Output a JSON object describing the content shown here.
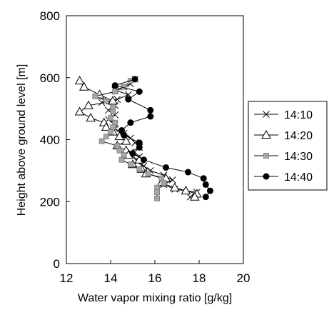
{
  "chart_data": {
    "type": "scatter",
    "xlabel": "Water vapor mixing ratio [g/kg]",
    "ylabel": "Height above ground level [m]",
    "xlim": [
      12,
      20
    ],
    "ylim": [
      0,
      800
    ],
    "xticks": [
      "12",
      "14",
      "16",
      "18",
      "20"
    ],
    "yticks": [
      "0",
      "200",
      "400",
      "600",
      "800"
    ],
    "legend_position": "right",
    "grid": false,
    "series": [
      {
        "name": "14:10",
        "marker": "x",
        "points": [
          [
            15.1,
            595
          ],
          [
            14.9,
            580
          ],
          [
            14.6,
            570
          ],
          [
            14.2,
            560
          ],
          [
            14.8,
            545
          ],
          [
            14.3,
            530
          ],
          [
            13.6,
            520
          ],
          [
            14.2,
            510
          ],
          [
            13.9,
            495
          ],
          [
            14.2,
            480
          ],
          [
            13.9,
            465
          ],
          [
            14.2,
            450
          ],
          [
            14.2,
            435
          ],
          [
            14.6,
            420
          ],
          [
            14.9,
            405
          ],
          [
            15.1,
            390
          ],
          [
            15.3,
            375
          ],
          [
            14.9,
            360
          ],
          [
            15.3,
            345
          ],
          [
            15.2,
            330
          ],
          [
            15.5,
            315
          ],
          [
            15.8,
            300
          ],
          [
            16.4,
            285
          ],
          [
            16.8,
            270
          ],
          [
            16.4,
            255
          ],
          [
            16.9,
            240
          ],
          [
            17.9,
            230
          ],
          [
            17.6,
            215
          ]
        ]
      },
      {
        "name": "14:20",
        "marker": "triangle",
        "points": [
          [
            12.6,
            590
          ],
          [
            12.8,
            570
          ],
          [
            13.5,
            545
          ],
          [
            14.1,
            525
          ],
          [
            13.0,
            510
          ],
          [
            12.6,
            490
          ],
          [
            13.1,
            470
          ],
          [
            13.7,
            455
          ],
          [
            13.8,
            440
          ],
          [
            14.1,
            425
          ],
          [
            14.4,
            410
          ],
          [
            14.7,
            395
          ],
          [
            14.3,
            380
          ],
          [
            14.7,
            365
          ],
          [
            14.8,
            350
          ],
          [
            15.3,
            335
          ],
          [
            15.0,
            320
          ],
          [
            15.4,
            305
          ],
          [
            15.6,
            290
          ],
          [
            16.5,
            275
          ],
          [
            16.3,
            260
          ],
          [
            16.9,
            245
          ],
          [
            17.4,
            235
          ],
          [
            17.9,
            225
          ],
          [
            17.8,
            215
          ]
        ]
      },
      {
        "name": "14:30",
        "marker": "square",
        "points": [
          [
            14.9,
            590
          ],
          [
            14.6,
            570
          ],
          [
            14.2,
            555
          ],
          [
            13.3,
            540
          ],
          [
            13.8,
            525
          ],
          [
            14.1,
            505
          ],
          [
            14.1,
            490
          ],
          [
            14.0,
            470
          ],
          [
            14.2,
            455
          ],
          [
            14.1,
            440
          ],
          [
            14.0,
            425
          ],
          [
            13.8,
            410
          ],
          [
            13.6,
            395
          ],
          [
            14.3,
            380
          ],
          [
            14.4,
            365
          ],
          [
            14.6,
            350
          ],
          [
            14.5,
            335
          ],
          [
            14.9,
            320
          ],
          [
            15.3,
            305
          ],
          [
            15.7,
            290
          ],
          [
            16.3,
            275
          ],
          [
            16.4,
            260
          ],
          [
            16.1,
            245
          ],
          [
            16.1,
            230
          ],
          [
            16.1,
            210
          ]
        ]
      },
      {
        "name": "14:40",
        "marker": "circle",
        "points": [
          [
            15.1,
            595
          ],
          [
            14.2,
            575
          ],
          [
            15.3,
            555
          ],
          [
            14.8,
            530
          ],
          [
            15.8,
            495
          ],
          [
            15.8,
            475
          ],
          [
            14.9,
            455
          ],
          [
            14.5,
            430
          ],
          [
            14.6,
            415
          ],
          [
            15.3,
            390
          ],
          [
            15.3,
            375
          ],
          [
            15.0,
            355
          ],
          [
            15.5,
            335
          ],
          [
            16.5,
            310
          ],
          [
            17.5,
            295
          ],
          [
            18.2,
            275
          ],
          [
            18.3,
            255
          ],
          [
            18.5,
            235
          ],
          [
            18.3,
            215
          ]
        ]
      }
    ]
  }
}
